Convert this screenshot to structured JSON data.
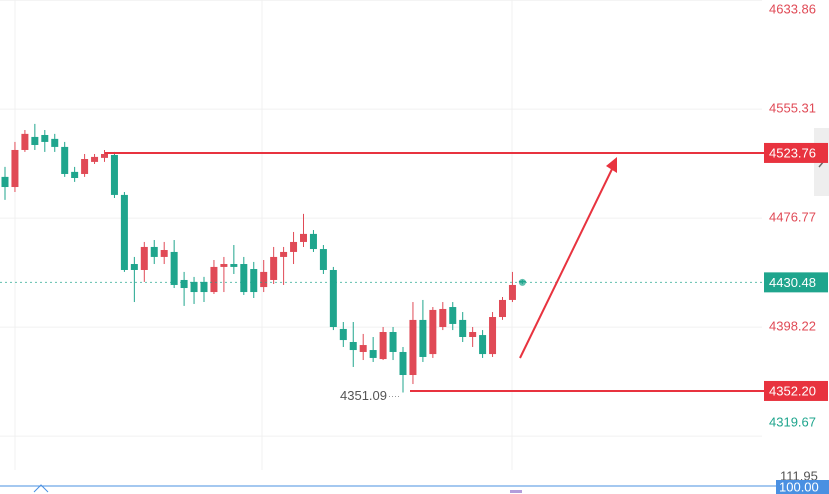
{
  "chart_data": {
    "type": "candlestick",
    "up_color": "#e04a56",
    "down_color": "#1fa58d",
    "open": [
      4506.5,
      4499.2,
      4525.9,
      4535.3,
      4536.7,
      4533.9,
      4528.1,
      4510.1,
      4508.6,
      4517.3,
      4520.2,
      4522.3,
      4493.5,
      4443.7,
      4439.4,
      4456.0,
      4448.8,
      4452.4,
      4432.2,
      4430.8,
      4430.8,
      4423.5,
      4441.6,
      4443.7,
      4443.7,
      4440.1,
      4427.1,
      4432.2,
      4448.8,
      4452.4,
      4459.6,
      4465.4,
      4454.5,
      4439.4,
      4396.9,
      4387.5,
      4380.3,
      4381.7,
      4375.2,
      4394.7,
      4380.3,
      4363.7,
      4403.4,
      4378.8,
      4398.3,
      4412.7,
      4403.4,
      4391.1,
      4392.5,
      4378.8,
      4405.5,
      4417.8,
      4431.6
    ],
    "high": [
      4513.7,
      4531.7,
      4540.3,
      4544.7,
      4540.3,
      4537.5,
      4531.7,
      4513.7,
      4523.0,
      4523.0,
      4525.9,
      4524.5,
      4495.6,
      4448.8,
      4459.6,
      4461.0,
      4459.6,
      4461.0,
      4438.0,
      4434.4,
      4434.4,
      4446.6,
      4448.8,
      4457.4,
      4448.8,
      4445.2,
      4446.6,
      4456.0,
      4456.0,
      4466.8,
      4479.8,
      4468.2,
      4457.4,
      4441.6,
      4401.9,
      4401.9,
      4393.3,
      4391.1,
      4398.3,
      4398.3,
      4383.9,
      4416.3,
      4417.8,
      4412.7,
      4416.3,
      4416.3,
      4409.1,
      4398.3,
      4396.1,
      4409.1,
      4419.9,
      4438.0,
      4432.2
    ],
    "low": [
      4489.9,
      4495.6,
      4524.5,
      4525.9,
      4524.5,
      4524.5,
      4506.5,
      4502.9,
      4506.5,
      4515.8,
      4517.3,
      4491.3,
      4438.0,
      4416.3,
      4430.8,
      4443.7,
      4443.7,
      4426.4,
      4413.5,
      4414.9,
      4416.3,
      4422.1,
      4423.5,
      4436.5,
      4421.4,
      4419.2,
      4423.5,
      4429.3,
      4428.6,
      4443.7,
      4456.0,
      4452.4,
      4436.5,
      4396.1,
      4383.9,
      4369.5,
      4374.5,
      4373.1,
      4374.5,
      4374.5,
      4351.09,
      4357.2,
      4373.1,
      4376.0,
      4396.1,
      4396.1,
      4387.5,
      4383.9,
      4376.0,
      4376.7,
      4403.4,
      4416.3,
      4429.3
    ],
    "close": [
      4499.2,
      4525.9,
      4537.5,
      4529.5,
      4531.7,
      4528.1,
      4508.6,
      4505.7,
      4519.4,
      4520.9,
      4523.0,
      4493.5,
      4439.4,
      4439.4,
      4456.0,
      4448.8,
      4453.8,
      4428.6,
      4426.4,
      4423.5,
      4423.5,
      4441.6,
      4443.7,
      4441.6,
      4423.5,
      4423.5,
      4438.0,
      4448.8,
      4452.4,
      4459.6,
      4465.4,
      4454.5,
      4439.4,
      4398.3,
      4388.9,
      4381.7,
      4385.3,
      4376.0,
      4394.7,
      4380.3,
      4363.7,
      4403.4,
      4376.7,
      4410.6,
      4411.3,
      4400.5,
      4391.1,
      4394.7,
      4378.8,
      4405.5,
      4417.8,
      4428.6,
      4430.48
    ],
    "ylim": [
      4301.0,
      4634.0
    ],
    "yticks": [
      4633.86,
      4555.31,
      4476.77,
      4398.22,
      4319.67
    ],
    "grid": true,
    "lines": [
      {
        "value": 4523.76,
        "color": "#e8333f"
      },
      {
        "value": 4352.2,
        "label": "4352.20",
        "color": "#e8333f"
      }
    ],
    "last_price": {
      "value": 4430.48,
      "color": "#1fa58d"
    },
    "low_label": "4351.09",
    "indicator_labels": [
      "111.95",
      "100.00"
    ]
  }
}
